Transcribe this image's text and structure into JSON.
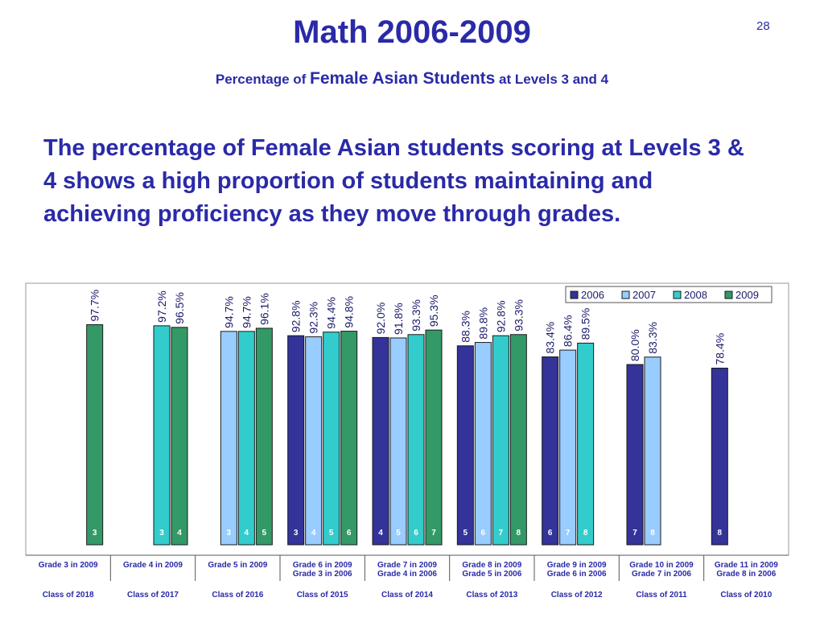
{
  "slide": {
    "title": "Math 2006-2009",
    "number": "28",
    "subtitle_pre": "Percentage of ",
    "subtitle_big": "Female Asian Students",
    "subtitle_post": " at Levels 3 and 4",
    "body": "The percentage of Female Asian students scoring at Levels 3 & 4 shows a high proportion of students maintaining and achieving proficiency as they move through grades."
  },
  "chart_data": {
    "type": "bar",
    "ylim": [
      0,
      100
    ],
    "grid": false,
    "legend_position": "top-right",
    "series": [
      {
        "name": "2006",
        "color": "#333399"
      },
      {
        "name": "2007",
        "color": "#99ccff"
      },
      {
        "name": "2008",
        "color": "#33cccc"
      },
      {
        "name": "2009",
        "color": "#339966"
      }
    ],
    "groups": [
      {
        "label": "Grade 3 in 2009",
        "sub": "",
        "class": "Class of 2018",
        "bars": [
          {
            "series": 3,
            "value": 97.7,
            "label": "97.7%",
            "grade": "3"
          }
        ]
      },
      {
        "label": "Grade 4 in 2009",
        "sub": "",
        "class": "Class of 2017",
        "bars": [
          {
            "series": 2,
            "value": 97.2,
            "label": "97.2%",
            "grade": "3"
          },
          {
            "series": 3,
            "value": 96.5,
            "label": "96.5%",
            "grade": "4"
          }
        ]
      },
      {
        "label": "Grade 5 in 2009",
        "sub": "",
        "class": "Class of 2016",
        "bars": [
          {
            "series": 1,
            "value": 94.7,
            "label": "94.7%",
            "grade": "3"
          },
          {
            "series": 2,
            "value": 94.7,
            "label": "94.7%",
            "grade": "4"
          },
          {
            "series": 3,
            "value": 96.1,
            "label": "96.1%",
            "grade": "5"
          }
        ]
      },
      {
        "label": "Grade 6 in 2009",
        "sub": "Grade 3 in 2006",
        "class": "Class of 2015",
        "bars": [
          {
            "series": 0,
            "value": 92.8,
            "label": "92.8%",
            "grade": "3"
          },
          {
            "series": 1,
            "value": 92.3,
            "label": "92.3%",
            "grade": "4"
          },
          {
            "series": 2,
            "value": 94.4,
            "label": "94.4%",
            "grade": "5"
          },
          {
            "series": 3,
            "value": 94.8,
            "label": "94.8%",
            "grade": "6"
          }
        ]
      },
      {
        "label": "Grade 7 in 2009",
        "sub": "Grade 4 in 2006",
        "class": "Class of 2014",
        "bars": [
          {
            "series": 0,
            "value": 92.0,
            "label": "92.0%",
            "grade": "4"
          },
          {
            "series": 1,
            "value": 91.8,
            "label": "91.8%",
            "grade": "5"
          },
          {
            "series": 2,
            "value": 93.3,
            "label": "93.3%",
            "grade": "6"
          },
          {
            "series": 3,
            "value": 95.3,
            "label": "95.3%",
            "grade": "7"
          }
        ]
      },
      {
        "label": "Grade 8 in 2009",
        "sub": "Grade 5 in 2006",
        "class": "Class of 2013",
        "bars": [
          {
            "series": 0,
            "value": 88.3,
            "label": "88.3%",
            "grade": "5"
          },
          {
            "series": 1,
            "value": 89.8,
            "label": "89.8%",
            "grade": "6"
          },
          {
            "series": 2,
            "value": 92.8,
            "label": "92.8%",
            "grade": "7"
          },
          {
            "series": 3,
            "value": 93.3,
            "label": "93.3%",
            "grade": "8"
          }
        ]
      },
      {
        "label": "Grade 9 in 2009",
        "sub": "Grade 6 in 2006",
        "class": "Class of 2012",
        "bars": [
          {
            "series": 0,
            "value": 83.4,
            "label": "83.4%",
            "grade": "6"
          },
          {
            "series": 1,
            "value": 86.4,
            "label": "86.4%",
            "grade": "7"
          },
          {
            "series": 2,
            "value": 89.5,
            "label": "89.5%",
            "grade": "8"
          }
        ]
      },
      {
        "label": "Grade 10 in 2009",
        "sub": "Grade 7 in 2006",
        "class": "Class of 2011",
        "bars": [
          {
            "series": 0,
            "value": 80.0,
            "label": "80.0%",
            "grade": "7"
          },
          {
            "series": 1,
            "value": 83.3,
            "label": "83.3%",
            "grade": "8"
          }
        ]
      },
      {
        "label": "Grade 11 in 2009",
        "sub": "Grade 8 in 2006",
        "class": "Class of 2010",
        "bars": [
          {
            "series": 0,
            "value": 78.4,
            "label": "78.4%",
            "grade": "8"
          }
        ]
      }
    ]
  }
}
